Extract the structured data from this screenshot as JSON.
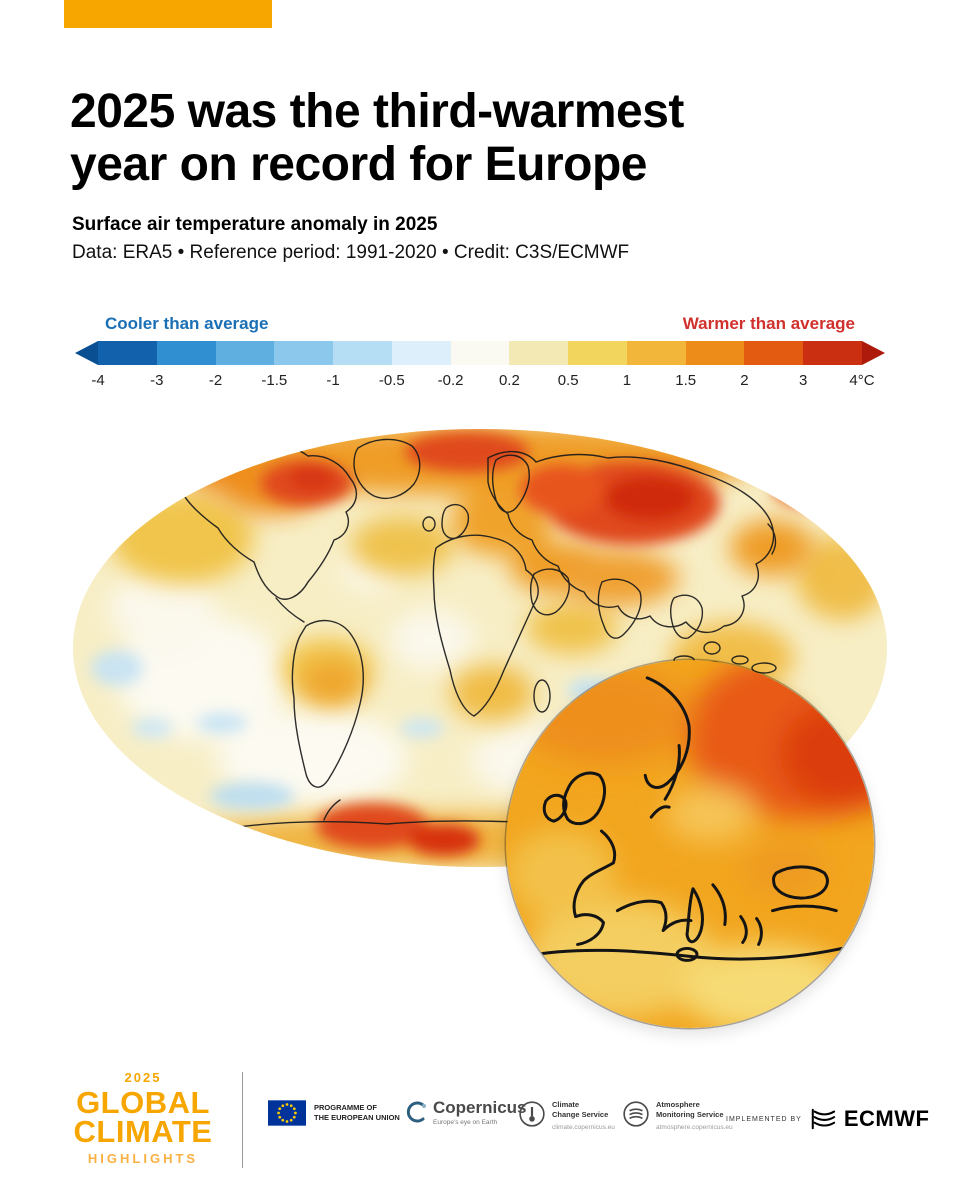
{
  "page": {
    "accent_color": "#F7A600",
    "background": "#FFFFFF"
  },
  "header": {
    "title_line1": "2025 was the third-warmest",
    "title_line2": "year on record for Europe",
    "subtitle": "Surface air temperature anomaly in 2025",
    "source": "Data: ERA5 • Reference period: 1991-2020 • Credit: C3S/ECMWF"
  },
  "colorbar": {
    "cooler_label": "Cooler than average",
    "warmer_label": "Warmer than average",
    "cooler_color": "#1B6FB5",
    "warmer_color": "#D0312D",
    "ticks": [
      "-4",
      "-3",
      "-2",
      "-1.5",
      "-1",
      "-0.5",
      "-0.2",
      "0.2",
      "0.5",
      "1",
      "1.5",
      "2",
      "3",
      "4°C"
    ],
    "segments": [
      "#1261AD",
      "#2F8FD0",
      "#5FB0E0",
      "#8CC8EC",
      "#B5DDF4",
      "#DCEFFA",
      "#FAFAF2",
      "#F3E9B4",
      "#F2D55C",
      "#F2B63B",
      "#EE8C1A",
      "#E25B10",
      "#CB2F12"
    ],
    "arrow_left_color": "#0B4F93",
    "arrow_right_color": "#AD1A0B"
  },
  "chart_data": {
    "type": "heatmap",
    "title": "Surface air temperature anomaly in 2025",
    "dataset": "ERA5",
    "reference_period": "1991-2020",
    "credit": "C3S/ECMWF",
    "units": "°C",
    "scale_boundaries": [
      -4,
      -3,
      -2,
      -1.5,
      -1,
      -0.5,
      -0.2,
      0.2,
      0.5,
      1,
      1.5,
      2,
      3,
      4
    ],
    "scale_colors": [
      "#1261AD",
      "#2F8FD0",
      "#5FB0E0",
      "#8CC8EC",
      "#B5DDF4",
      "#DCEFFA",
      "#FAFAF2",
      "#F3E9B4",
      "#F2D55C",
      "#F2B63B",
      "#EE8C1A",
      "#E25B10",
      "#CB2F12"
    ],
    "legend": {
      "cooler": "Cooler than average",
      "warmer": "Warmer than average"
    },
    "map": {
      "projection": "Robinson world map with circular Europe inset",
      "notable_anomalies": [
        {
          "region": "Arctic and Siberia",
          "anomaly_c": "+2 to +4"
        },
        {
          "region": "Northern Canada / Greenland",
          "anomaly_c": "+2 to +3"
        },
        {
          "region": "Europe (inset)",
          "anomaly_c": "+1 to +2"
        },
        {
          "region": "Middle East and Central Asia",
          "anomaly_c": "+1 to +2"
        },
        {
          "region": "Parts of Antarctica",
          "anomaly_c": "+2 to +4"
        },
        {
          "region": "Most ocean areas",
          "anomaly_c": "+0.2 to +1"
        },
        {
          "region": "Scattered Southern Ocean and eastern Pacific patches",
          "anomaly_c": "-0.2 to -1"
        }
      ]
    }
  },
  "footer": {
    "brand": {
      "year": "2025",
      "line1": "GLOBAL",
      "line2": "CLIMATE",
      "line3": "HIGHLIGHTS"
    },
    "eu": {
      "line1": "PROGRAMME OF",
      "line2": "THE EUROPEAN UNION"
    },
    "copernicus": {
      "name": "Copernicus",
      "tagline": "Europe's eye on Earth"
    },
    "c3s": {
      "name_line1": "Climate",
      "name_line2": "Change Service",
      "url": "climate.copernicus.eu"
    },
    "cams": {
      "name_line1": "Atmosphere",
      "name_line2": "Monitoring Service",
      "url": "atmosphere.copernicus.eu"
    },
    "ecmwf": {
      "prefix": "IMPLEMENTED BY",
      "name": "ECMWF"
    }
  }
}
